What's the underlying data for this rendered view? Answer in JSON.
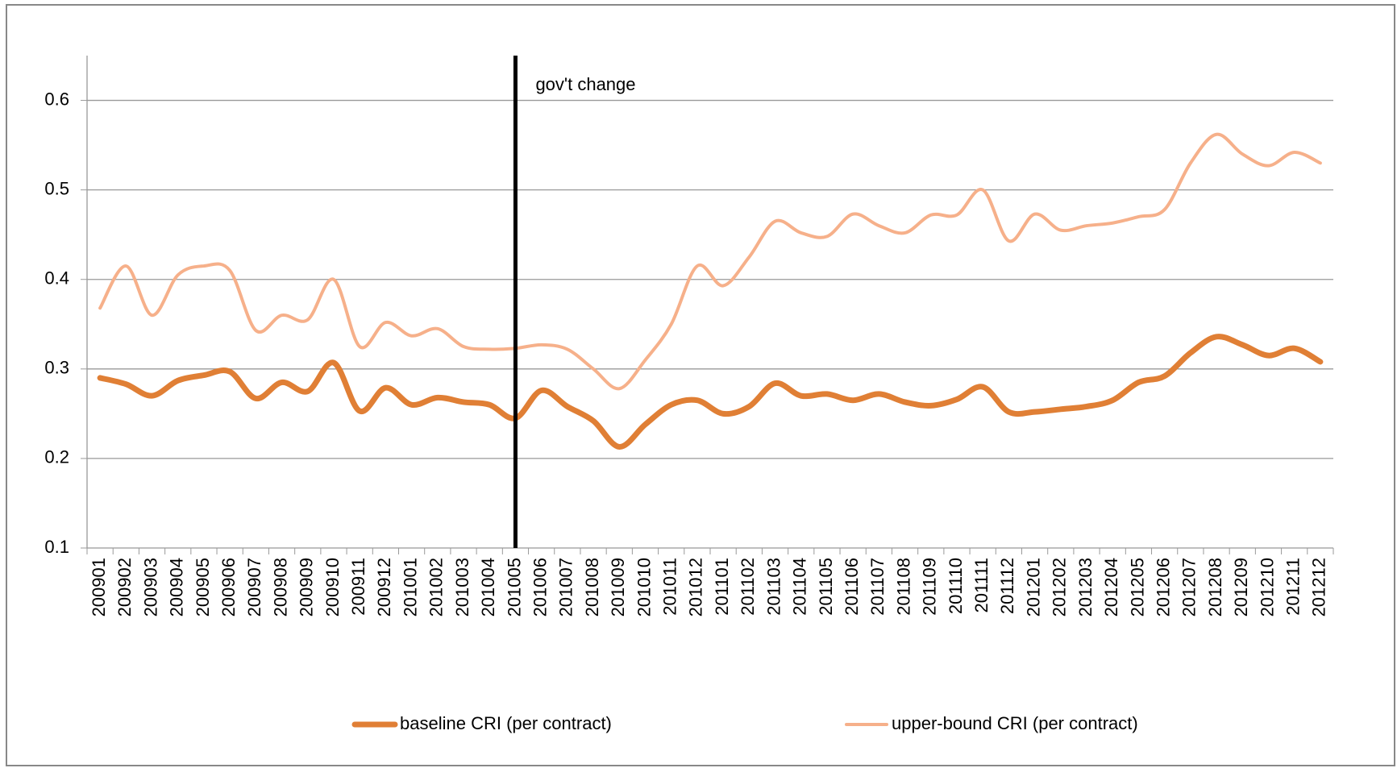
{
  "chart_data": {
    "type": "line",
    "categories": [
      "200901",
      "200902",
      "200903",
      "200904",
      "200905",
      "200906",
      "200907",
      "200908",
      "200909",
      "200910",
      "200911",
      "200912",
      "201001",
      "201002",
      "201003",
      "201004",
      "201005",
      "201006",
      "201007",
      "201008",
      "201009",
      "201010",
      "201011",
      "201012",
      "201101",
      "201102",
      "201103",
      "201104",
      "201105",
      "201106",
      "201107",
      "201108",
      "201109",
      "201110",
      "201111",
      "201112",
      "201201",
      "201202",
      "201203",
      "201204",
      "201205",
      "201206",
      "201207",
      "201208",
      "201209",
      "201210",
      "201211",
      "201212"
    ],
    "series": [
      {
        "name": "baseline CRI (per contract)",
        "color": "#e07f35",
        "values": [
          0.29,
          0.283,
          0.27,
          0.287,
          0.293,
          0.297,
          0.267,
          0.285,
          0.275,
          0.307,
          0.253,
          0.279,
          0.26,
          0.268,
          0.263,
          0.26,
          0.245,
          0.276,
          0.258,
          0.242,
          0.213,
          0.238,
          0.26,
          0.265,
          0.25,
          0.258,
          0.284,
          0.27,
          0.272,
          0.265,
          0.272,
          0.263,
          0.259,
          0.266,
          0.28,
          0.252,
          0.252,
          0.255,
          0.258,
          0.265,
          0.285,
          0.292,
          0.318,
          0.336,
          0.327,
          0.315,
          0.323,
          0.308
        ]
      },
      {
        "name": "upper-bound CRI (per contract)",
        "color": "#f6b08a",
        "values": [
          0.368,
          0.415,
          0.36,
          0.405,
          0.415,
          0.41,
          0.343,
          0.36,
          0.355,
          0.4,
          0.325,
          0.352,
          0.337,
          0.345,
          0.325,
          0.322,
          0.323,
          0.327,
          0.322,
          0.3,
          0.278,
          0.31,
          0.35,
          0.415,
          0.393,
          0.425,
          0.465,
          0.452,
          0.448,
          0.473,
          0.46,
          0.452,
          0.472,
          0.472,
          0.5,
          0.443,
          0.473,
          0.455,
          0.46,
          0.463,
          0.47,
          0.478,
          0.53,
          0.562,
          0.54,
          0.527,
          0.542,
          0.53
        ]
      }
    ],
    "ylim": [
      0.1,
      0.65
    ],
    "yticks": [
      0.1,
      0.2,
      0.3,
      0.4,
      0.5,
      0.6
    ],
    "grid": true,
    "legend": "bottom",
    "annotation": {
      "text": "gov't change",
      "x": "201005"
    }
  }
}
